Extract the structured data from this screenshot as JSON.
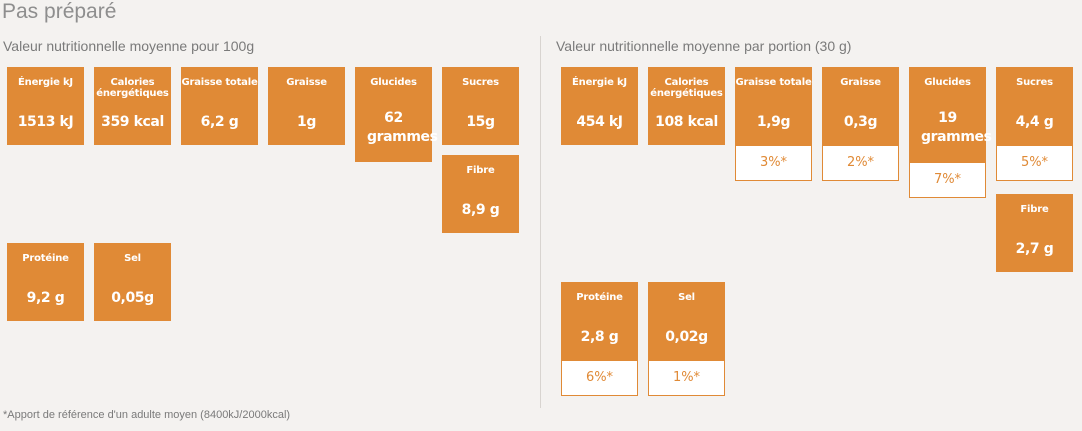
{
  "page": {
    "title": "Pas préparé",
    "footnote": "*Apport de référence d'un adulte moyen (8400kJ/2000kcal)"
  },
  "per100g": {
    "heading": "Valeur nutritionnelle moyenne pour 100g",
    "items": [
      {
        "label": "Énergie kJ",
        "value": "1513 kJ"
      },
      {
        "label": "Calories énergétiques",
        "value": "359 kcal"
      },
      {
        "label": "Graisse totale",
        "value": "6,2 g"
      },
      {
        "label": "Graisse",
        "value": "1g"
      },
      {
        "label": "Glucides",
        "value": "62 grammes"
      },
      {
        "label": "Sucres",
        "value": "15g"
      },
      {
        "label": "Fibre",
        "value": "8,9 g"
      },
      {
        "label": "Protéine",
        "value": "9,2 g"
      },
      {
        "label": "Sel",
        "value": "0,05g"
      }
    ]
  },
  "perPortion": {
    "heading": "Valeur nutritionnelle moyenne par portion (30 g)",
    "items": [
      {
        "label": "Énergie kJ",
        "value": "454 kJ",
        "pct": ""
      },
      {
        "label": "Calories énergétiques",
        "value": "108 kcal",
        "pct": ""
      },
      {
        "label": "Graisse totale",
        "value": "1,9g",
        "pct": "3%*"
      },
      {
        "label": "Graisse",
        "value": "0,3g",
        "pct": "2%*"
      },
      {
        "label": "Glucides",
        "value": "19 grammes",
        "pct": "7%*"
      },
      {
        "label": "Sucres",
        "value": "4,4 g",
        "pct": "5%*"
      },
      {
        "label": "Fibre",
        "value": "2,7 g",
        "pct": ""
      },
      {
        "label": "Protéine",
        "value": "2,8 g",
        "pct": "6%*"
      },
      {
        "label": "Sel",
        "value": "0,02g",
        "pct": "1%*"
      }
    ]
  }
}
